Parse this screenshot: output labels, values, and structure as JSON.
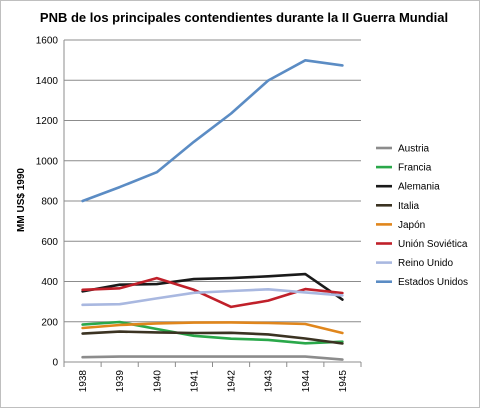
{
  "chart_data": {
    "type": "line",
    "title": "PNB de los principales contendientes durante la II Guerra Mundial",
    "xlabel": "",
    "ylabel": "MM US$ 1990",
    "categories": [
      "1938",
      "1939",
      "1940",
      "1941",
      "1942",
      "1943",
      "1944",
      "1945"
    ],
    "ylim": [
      0,
      1600
    ],
    "yticks": [
      0,
      200,
      400,
      600,
      800,
      1000,
      1200,
      1400,
      1600
    ],
    "grid": true,
    "legend_position": "right",
    "series": [
      {
        "name": "Austria",
        "color": "#8c8c8c",
        "values": [
          24,
          27,
          27,
          27,
          27,
          27,
          27,
          12
        ]
      },
      {
        "name": "Francia",
        "color": "#2aa84a",
        "values": [
          186,
          199,
          164,
          130,
          116,
          110,
          93,
          101
        ]
      },
      {
        "name": "Alemania",
        "color": "#1a1a1a",
        "values": [
          351,
          384,
          387,
          412,
          417,
          426,
          437,
          310
        ]
      },
      {
        "name": "Italia",
        "color": "#3b3322",
        "values": [
          141,
          151,
          147,
          144,
          145,
          137,
          117,
          92
        ]
      },
      {
        "name": "Japón",
        "color": "#e0861c",
        "values": [
          169,
          184,
          192,
          196,
          197,
          194,
          189,
          144
        ]
      },
      {
        "name": "Unión Soviética",
        "color": "#c0202a",
        "values": [
          359,
          366,
          417,
          359,
          274,
          305,
          362,
          343
        ]
      },
      {
        "name": "Reino Unido",
        "color": "#a9b8e0",
        "values": [
          284,
          287,
          316,
          344,
          353,
          361,
          346,
          331
        ]
      },
      {
        "name": "Estados Unidos",
        "color": "#5b8cc4",
        "values": [
          800,
          869,
          943,
          1094,
          1235,
          1399,
          1499,
          1474
        ]
      }
    ]
  }
}
